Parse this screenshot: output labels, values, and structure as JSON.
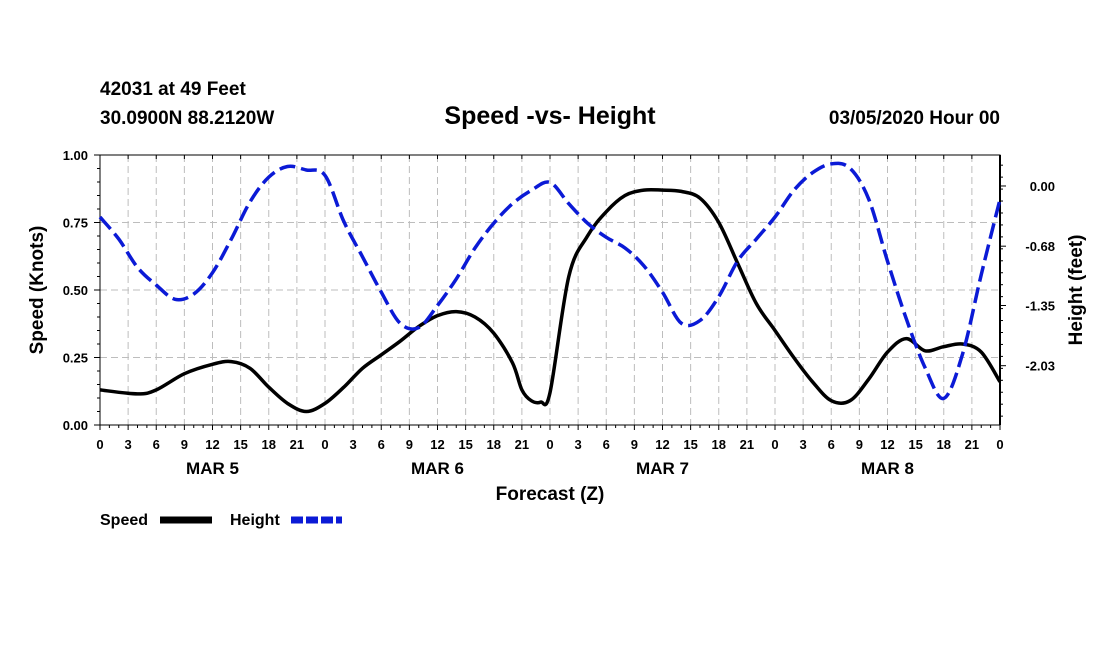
{
  "chart_data": {
    "type": "line",
    "station": "42031 at 49 Feet",
    "location": "30.0900N 88.2120W",
    "title": "Speed -vs- Height",
    "date_label": "03/05/2020 Hour 00",
    "xlabel": "Forecast (Z)",
    "ylabel": "Speed (Knots)",
    "y2label": "Height (feet)",
    "xlim": [
      0,
      96
    ],
    "ylim": [
      0,
      1
    ],
    "y2lim": [
      -2.7,
      0.35
    ],
    "x_tick_labels": [
      "0",
      "3",
      "6",
      "9",
      "12",
      "15",
      "18",
      "21",
      "0",
      "3",
      "6",
      "9",
      "12",
      "15",
      "18",
      "21",
      "0",
      "3",
      "6",
      "9",
      "12",
      "15",
      "18",
      "21",
      "0",
      "3",
      "6",
      "9",
      "12",
      "15",
      "18",
      "21",
      "0"
    ],
    "day_labels": [
      {
        "x": 12,
        "label": "MAR 5"
      },
      {
        "x": 36,
        "label": "MAR 6"
      },
      {
        "x": 60,
        "label": "MAR 7"
      },
      {
        "x": 84,
        "label": "MAR 8"
      }
    ],
    "y_ticks": [
      {
        "value": 0,
        "label": "0.00"
      },
      {
        "value": 0.25,
        "label": "0.25"
      },
      {
        "value": 0.5,
        "label": "0.50"
      },
      {
        "value": 0.75,
        "label": "0.75"
      },
      {
        "value": 1,
        "label": "1.00"
      }
    ],
    "y2_ticks": [
      {
        "value": 0.0,
        "label": "0.00"
      },
      {
        "value": -0.68,
        "label": "-0.68"
      },
      {
        "value": -1.35,
        "label": "-1.35"
      },
      {
        "value": -2.03,
        "label": "-2.03"
      }
    ],
    "grid": true,
    "legend_position": "bottom-left",
    "series": [
      {
        "name": "Speed",
        "axis": "left",
        "color": "#000000",
        "style": "solid",
        "x": [
          0,
          4,
          6,
          9,
          12,
          14,
          16,
          18,
          20,
          22,
          24,
          26,
          28,
          30,
          32,
          34,
          36,
          38,
          40,
          42,
          44,
          45,
          46,
          47,
          48,
          50,
          52,
          54,
          56,
          58,
          60,
          62,
          64,
          66,
          68,
          70,
          72,
          74,
          76,
          78,
          80,
          82,
          84,
          86,
          88,
          90,
          92,
          94,
          96
        ],
        "y": [
          0.13,
          0.115,
          0.13,
          0.19,
          0.225,
          0.235,
          0.21,
          0.14,
          0.08,
          0.05,
          0.08,
          0.14,
          0.21,
          0.26,
          0.31,
          0.365,
          0.405,
          0.42,
          0.4,
          0.34,
          0.23,
          0.13,
          0.09,
          0.085,
          0.12,
          0.55,
          0.7,
          0.79,
          0.85,
          0.87,
          0.87,
          0.865,
          0.84,
          0.75,
          0.6,
          0.45,
          0.35,
          0.25,
          0.16,
          0.09,
          0.09,
          0.17,
          0.27,
          0.32,
          0.275,
          0.29,
          0.3,
          0.27,
          0.16
        ]
      },
      {
        "name": "Height",
        "axis": "right",
        "color": "#0b1ad6",
        "style": "dashed",
        "x": [
          0,
          2,
          4,
          6,
          8,
          10,
          12,
          14,
          16,
          18,
          20,
          22,
          24,
          26,
          28,
          30,
          32,
          34,
          36,
          38,
          40,
          42,
          44,
          46,
          48,
          50,
          52,
          54,
          56,
          58,
          60,
          62,
          64,
          66,
          68,
          70,
          72,
          74,
          76,
          78,
          80,
          82,
          84,
          86,
          88,
          90,
          92,
          94,
          96
        ],
        "y": [
          -0.35,
          -0.6,
          -0.92,
          -1.12,
          -1.28,
          -1.22,
          -0.98,
          -0.6,
          -0.18,
          0.1,
          0.22,
          0.18,
          0.12,
          -0.4,
          -0.8,
          -1.2,
          -1.55,
          -1.6,
          -1.35,
          -1.05,
          -0.7,
          -0.42,
          -0.2,
          -0.05,
          0.04,
          -0.2,
          -0.42,
          -0.58,
          -0.7,
          -0.9,
          -1.2,
          -1.55,
          -1.52,
          -1.25,
          -0.85,
          -0.6,
          -0.35,
          -0.05,
          0.15,
          0.25,
          0.2,
          -0.15,
          -0.85,
          -1.5,
          -2.05,
          -2.4,
          -1.9,
          -1.0,
          -0.15
        ]
      }
    ]
  }
}
